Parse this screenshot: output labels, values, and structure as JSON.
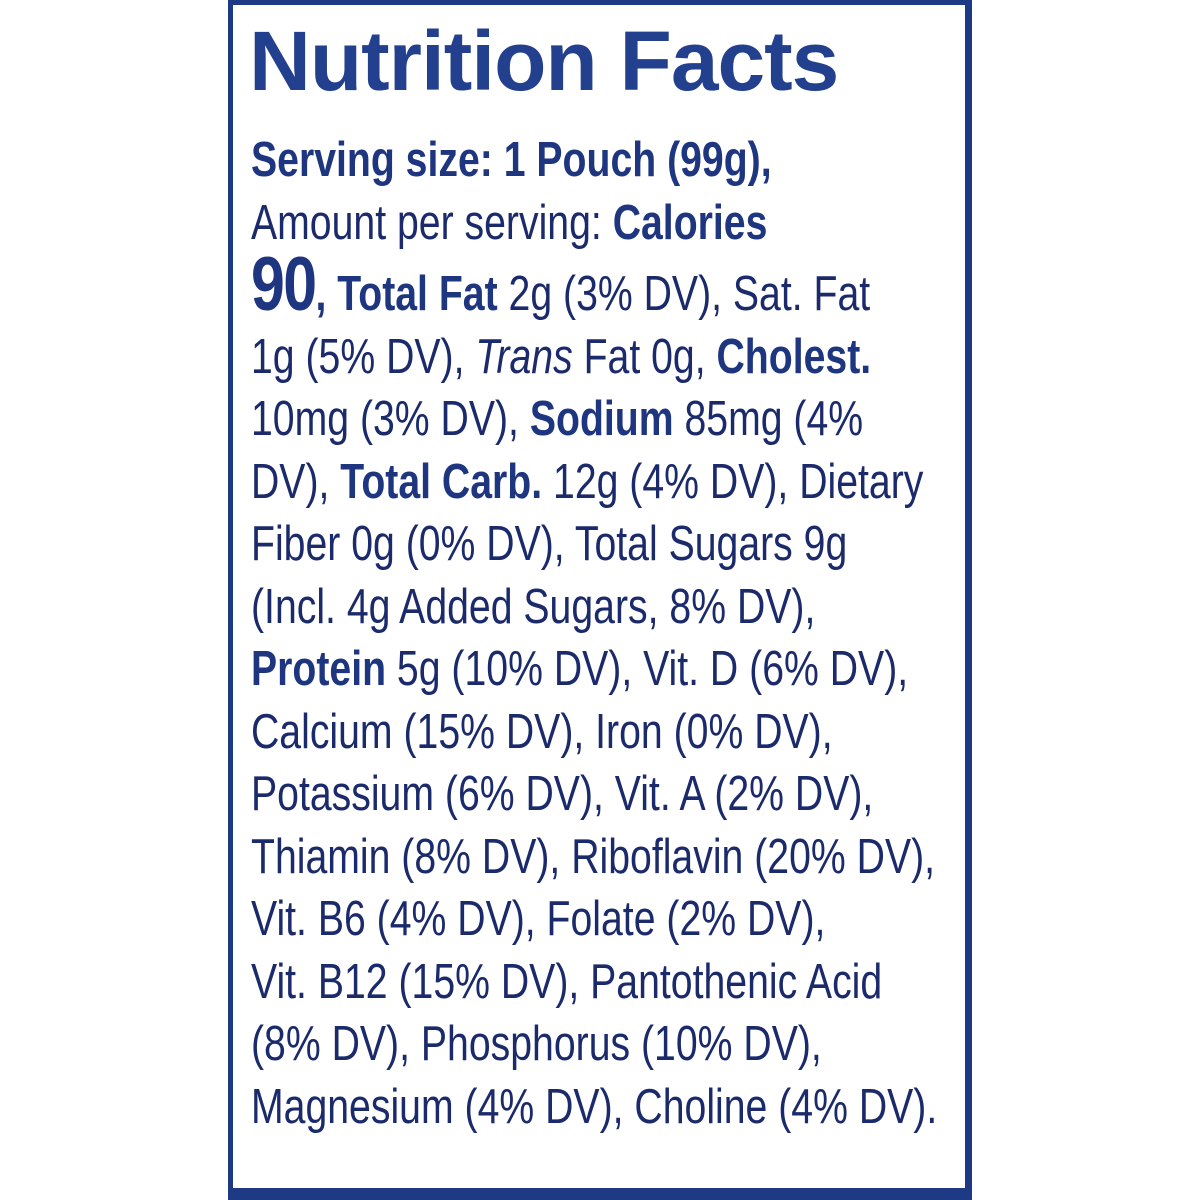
{
  "label": {
    "title": "Nutrition Facts",
    "serving": {
      "label": "Serving size: 1 Pouch (99g),",
      "size": "1 Pouch (99g)"
    },
    "amount_per_serving": "Amount per serving:",
    "calories_label": "Calories",
    "calories_value": "90",
    "lines": [
      {
        "parts": [
          {
            "t": "Serving size: 1 Pouch (99g),",
            "s": "b"
          }
        ]
      },
      {
        "parts": [
          {
            "t": "Amount per serving: ",
            "s": ""
          },
          {
            "t": "Calories",
            "s": "b"
          }
        ]
      },
      {
        "parts": [
          {
            "t": "90",
            "s": "big"
          },
          {
            "t": ", Total Fat",
            "s": "b"
          },
          {
            "t": " 2g (3% DV), Sat. Fat",
            "s": ""
          }
        ]
      },
      {
        "parts": [
          {
            "t": "1g (5% DV), ",
            "s": ""
          },
          {
            "t": "Trans",
            "s": "i"
          },
          {
            "t": " Fat 0g, ",
            "s": ""
          },
          {
            "t": "Cholest.",
            "s": "b"
          }
        ]
      },
      {
        "parts": [
          {
            "t": "10mg (3% DV), ",
            "s": ""
          },
          {
            "t": "Sodium",
            "s": "b"
          },
          {
            "t": " 85mg (4%",
            "s": ""
          }
        ]
      },
      {
        "parts": [
          {
            "t": "DV), ",
            "s": ""
          },
          {
            "t": "Total Carb.",
            "s": "b"
          },
          {
            "t": " 12g (4% DV), Dietary",
            "s": ""
          }
        ]
      },
      {
        "parts": [
          {
            "t": "Fiber 0g (0% DV), Total Sugars 9g",
            "s": ""
          }
        ]
      },
      {
        "parts": [
          {
            "t": "(Incl. 4g Added Sugars, 8% DV),",
            "s": ""
          }
        ]
      },
      {
        "parts": [
          {
            "t": "Protein",
            "s": "b"
          },
          {
            "t": " 5g (10% DV), Vit. D (6% DV),",
            "s": ""
          }
        ]
      },
      {
        "parts": [
          {
            "t": "Calcium (15% DV), Iron (0% DV),",
            "s": ""
          }
        ]
      },
      {
        "parts": [
          {
            "t": "Potassium (6% DV), Vit. A (2% DV),",
            "s": ""
          }
        ]
      },
      {
        "parts": [
          {
            "t": "Thiamin (8% DV), Riboflavin (20% DV),",
            "s": ""
          }
        ]
      },
      {
        "parts": [
          {
            "t": "Vit. B6 (4% DV), Folate (2% DV),",
            "s": ""
          }
        ]
      },
      {
        "parts": [
          {
            "t": "Vit. B12 (15% DV), Pantothenic Acid",
            "s": ""
          }
        ]
      },
      {
        "parts": [
          {
            "t": "(8% DV), Phosphorus (10% DV),",
            "s": ""
          }
        ]
      },
      {
        "parts": [
          {
            "t": "Magnesium (4% DV), Choline (4% DV).",
            "s": ""
          }
        ]
      }
    ],
    "nutrients": [
      {
        "name": "Total Fat",
        "amount": "2g",
        "dv": "3%"
      },
      {
        "name": "Sat. Fat",
        "amount": "1g",
        "dv": "5%"
      },
      {
        "name": "Trans Fat",
        "amount": "0g",
        "dv": ""
      },
      {
        "name": "Cholest.",
        "amount": "10mg",
        "dv": "3%"
      },
      {
        "name": "Sodium",
        "amount": "85mg",
        "dv": "4%"
      },
      {
        "name": "Total Carb.",
        "amount": "12g",
        "dv": "4%"
      },
      {
        "name": "Dietary Fiber",
        "amount": "0g",
        "dv": "0%"
      },
      {
        "name": "Total Sugars",
        "amount": "9g",
        "dv": ""
      },
      {
        "name": "Added Sugars",
        "amount": "4g",
        "dv": "8%"
      },
      {
        "name": "Protein",
        "amount": "5g",
        "dv": "10%"
      },
      {
        "name": "Vit. D",
        "amount": "",
        "dv": "6%"
      },
      {
        "name": "Calcium",
        "amount": "",
        "dv": "15%"
      },
      {
        "name": "Iron",
        "amount": "",
        "dv": "0%"
      },
      {
        "name": "Potassium",
        "amount": "",
        "dv": "6%"
      },
      {
        "name": "Vit. A",
        "amount": "",
        "dv": "2%"
      },
      {
        "name": "Thiamin",
        "amount": "",
        "dv": "8%"
      },
      {
        "name": "Riboflavin",
        "amount": "",
        "dv": "20%"
      },
      {
        "name": "Vit. B6",
        "amount": "",
        "dv": "4%"
      },
      {
        "name": "Folate",
        "amount": "",
        "dv": "2%"
      },
      {
        "name": "Vit. B12",
        "amount": "",
        "dv": "15%"
      },
      {
        "name": "Pantothenic Acid",
        "amount": "",
        "dv": "8%"
      },
      {
        "name": "Phosphorus",
        "amount": "",
        "dv": "10%"
      },
      {
        "name": "Magnesium",
        "amount": "",
        "dv": "4%"
      },
      {
        "name": "Choline",
        "amount": "",
        "dv": "4%"
      }
    ],
    "colors": {
      "border": "#1f3a85",
      "text": "#1b2a6b",
      "title": "#23408e",
      "background": "#ffffff"
    }
  }
}
